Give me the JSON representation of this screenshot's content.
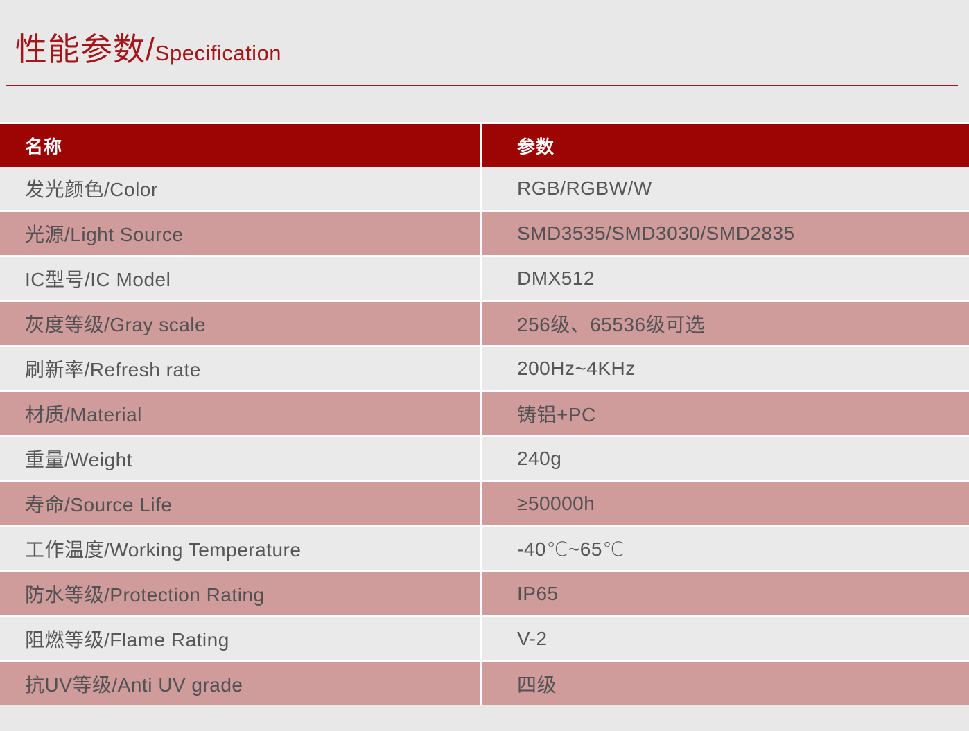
{
  "colors": {
    "page_background": "#e9e8e8",
    "title_red": "#a3161a",
    "header_red": "#9d0404",
    "row_pink": "#cf9b9b",
    "row_gray": "#eaeaea",
    "text_gray": "#57575a",
    "header_text": "#ffffff"
  },
  "title": {
    "zh_part": "性能参数/",
    "en_part": "Specification"
  },
  "table": {
    "header": {
      "name": "名称",
      "value": "参数"
    },
    "rows": [
      {
        "name": "发光颜色/Color",
        "value": "RGB/RGBW/W",
        "variant": "gray"
      },
      {
        "name": "光源/Light Source",
        "value": "SMD3535/SMD3030/SMD2835",
        "variant": "pink"
      },
      {
        "name": "IC型号/IC Model",
        "value": "DMX512",
        "variant": "gray"
      },
      {
        "name": "灰度等级/Gray scale",
        "value": "256级、65536级可选",
        "variant": "pink"
      },
      {
        "name": "刷新率/Refresh rate",
        "value": "200Hz~4KHz",
        "variant": "gray"
      },
      {
        "name": "材质/Material",
        "value": "铸铝+PC",
        "variant": "pink"
      },
      {
        "name": "重量/Weight",
        "value": "240g",
        "variant": "gray"
      },
      {
        "name": "寿命/Source Life",
        "value": "≥50000h",
        "variant": "pink"
      },
      {
        "name": "工作温度/Working Temperature",
        "value": "-40℃~65℃",
        "variant": "gray"
      },
      {
        "name": "防水等级/Protection Rating",
        "value": "IP65",
        "variant": "pink"
      },
      {
        "name": "阻燃等级/Flame Rating",
        "value": "V-2",
        "variant": "gray"
      },
      {
        "name": "抗UV等级/Anti UV grade",
        "value": "四级",
        "variant": "pink"
      }
    ]
  }
}
